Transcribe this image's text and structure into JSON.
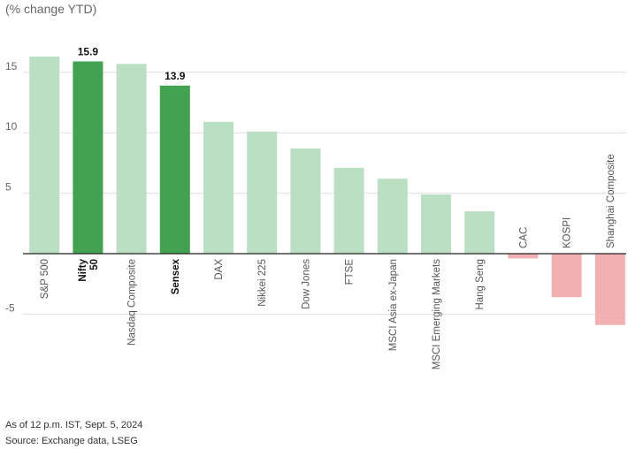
{
  "chart_data": {
    "type": "bar",
    "subtitle": "(% change YTD)",
    "categories": [
      "S&P 500",
      "Nifty 50",
      "Nasdaq Composite",
      "Sensex",
      "DAX",
      "Nikkei 225",
      "Dow Jones",
      "FTSE",
      "MSCI Asia ex-Japan",
      "MSCI Emerging Markets",
      "Hang Seng",
      "CAC",
      "KOSPI",
      "Shanghai Composite"
    ],
    "label_lines": [
      [
        "S&P 500"
      ],
      [
        "Nifty",
        "50"
      ],
      [
        "Nasdaq Composite"
      ],
      [
        "Sensex"
      ],
      [
        "DAX"
      ],
      [
        "Nikkei 225"
      ],
      [
        "Dow Jones"
      ],
      [
        "FTSE"
      ],
      [
        "MSCI Asia ex-Japan"
      ],
      [
        "MSCI Emerging Markets"
      ],
      [
        "Hang Seng"
      ],
      [
        "CAC"
      ],
      [
        "KOSPI"
      ],
      [
        "Shanghai Composite"
      ]
    ],
    "values": [
      16.3,
      15.9,
      15.7,
      13.9,
      10.9,
      10.1,
      8.7,
      7.1,
      6.2,
      4.9,
      3.5,
      -0.4,
      -3.6,
      -5.9
    ],
    "highlight": [
      false,
      true,
      false,
      true,
      false,
      false,
      false,
      false,
      false,
      false,
      false,
      false,
      false,
      false
    ],
    "data_labels": [
      "",
      "15.9",
      "",
      "13.9",
      "",
      "",
      "",
      "",
      "",
      "",
      "",
      "",
      "",
      ""
    ],
    "yticks": [
      15,
      10,
      5,
      0,
      -5
    ],
    "ytick_labels": [
      "15",
      "10",
      "5",
      "",
      "-5"
    ],
    "ylim": [
      -9,
      18
    ],
    "xlabel": "",
    "ylabel": "",
    "colors": {
      "positive": "#badfc3",
      "highlight": "#43a24f",
      "negative": "#f1b1b2",
      "grid": "#e1e1e1",
      "axis": "#222222"
    }
  },
  "notes": {
    "as_of": "As of 12 p.m. IST, Sept. 5, 2024",
    "source": "Source: Exchange data, LSEG"
  }
}
